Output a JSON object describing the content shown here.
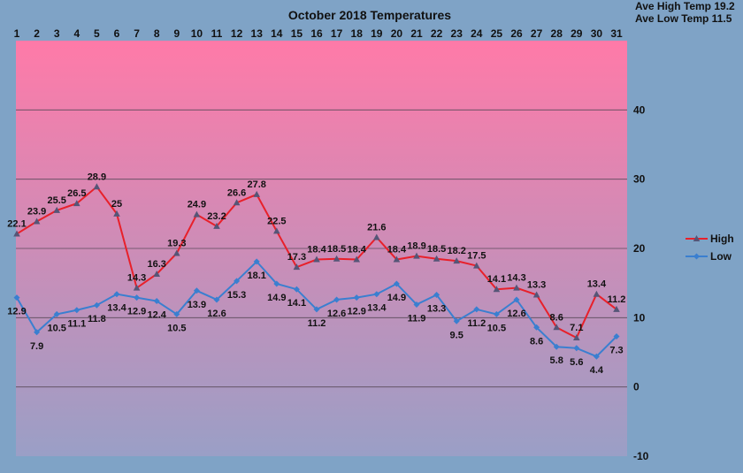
{
  "chart_data": {
    "type": "line",
    "title": "October 2018 Temperatures",
    "annotations": [
      "Ave High Temp 19.2",
      "Ave Low Temp 11.5"
    ],
    "categories": [
      "1",
      "2",
      "3",
      "4",
      "5",
      "6",
      "7",
      "8",
      "9",
      "10",
      "11",
      "12",
      "13",
      "14",
      "15",
      "16",
      "17",
      "18",
      "19",
      "20",
      "21",
      "22",
      "23",
      "24",
      "25",
      "26",
      "27",
      "28",
      "29",
      "30",
      "31"
    ],
    "ylim": [
      -10,
      50
    ],
    "yticks": [
      "-10",
      "0",
      "10",
      "20",
      "30",
      "40"
    ],
    "grid": true,
    "legend_position": "right",
    "series": [
      {
        "name": "High",
        "color": "#e8202a",
        "marker": "triangle",
        "values": [
          22.1,
          23.9,
          25.5,
          26.5,
          28.9,
          25,
          14.3,
          16.3,
          19.3,
          24.9,
          23.2,
          26.6,
          27.8,
          22.5,
          17.3,
          18.4,
          18.5,
          18.4,
          21.6,
          18.4,
          18.9,
          18.5,
          18.2,
          17.5,
          14.1,
          14.3,
          13.3,
          8.6,
          7.1,
          13.4,
          11.2
        ]
      },
      {
        "name": "Low",
        "color": "#3a7fd0",
        "marker": "diamond",
        "values": [
          12.9,
          7.9,
          10.5,
          11.1,
          11.8,
          13.4,
          12.9,
          12.4,
          10.5,
          13.9,
          12.6,
          15.3,
          18.1,
          14.9,
          14.1,
          11.2,
          12.6,
          12.9,
          13.4,
          14.9,
          11.9,
          13.3,
          9.5,
          11.2,
          10.5,
          12.6,
          8.6,
          5.8,
          5.6,
          4.4,
          7.3
        ]
      }
    ]
  },
  "colors": {
    "background": "#7fa3c6",
    "plot_top": "#ff7aa8",
    "plot_bottom": "#9a9fc6",
    "gridline": "#5a4a5a",
    "text": "#111111"
  }
}
